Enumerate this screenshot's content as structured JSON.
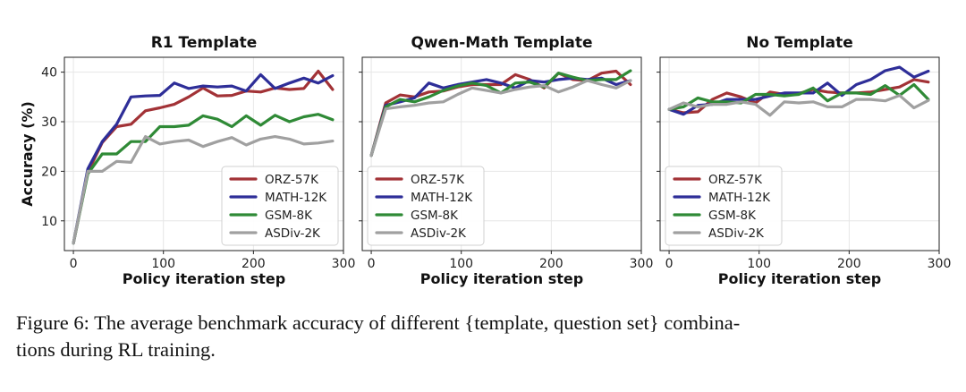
{
  "caption": {
    "line1": "Figure 6: The average benchmark accuracy of different {template, question set} combina-",
    "line2": "tions during RL training."
  },
  "colors": {
    "ORZ-57K": "#a23236",
    "MATH-12K": "#2e2e98",
    "GSM-8K": "#2f8a36",
    "ASDiv-2K": "#a0a0a0"
  },
  "chart_data": [
    {
      "type": "line",
      "title": "R1 Template",
      "xlabel": "Policy iteration step",
      "ylabel": "Accuracy (%)",
      "xlim": [
        -10,
        300
      ],
      "ylim": [
        4,
        43
      ],
      "xticks": [
        0,
        100,
        200,
        300
      ],
      "yticks": [
        10,
        20,
        30,
        40
      ],
      "grid": true,
      "legend": "lower-right",
      "series": [
        {
          "name": "ORZ-57K",
          "x": [
            0,
            16,
            32,
            48,
            64,
            80,
            96,
            112,
            128,
            144,
            160,
            176,
            192,
            208,
            224,
            240,
            256,
            272,
            288
          ],
          "y": [
            5.5,
            19.8,
            25.8,
            29.0,
            29.5,
            32.2,
            32.8,
            33.5,
            35.0,
            36.8,
            35.2,
            35.3,
            36.2,
            36.0,
            36.8,
            36.5,
            36.7,
            40.2,
            36.5
          ]
        },
        {
          "name": "MATH-12K",
          "x": [
            0,
            16,
            32,
            48,
            64,
            80,
            96,
            112,
            128,
            144,
            160,
            176,
            192,
            208,
            224,
            240,
            256,
            272,
            288
          ],
          "y": [
            5.5,
            20.5,
            26.0,
            29.5,
            35.0,
            35.2,
            35.3,
            37.8,
            36.7,
            37.2,
            37.0,
            37.2,
            36.2,
            39.5,
            36.7,
            37.8,
            38.8,
            37.8,
            39.3
          ]
        },
        {
          "name": "GSM-8K",
          "x": [
            0,
            16,
            32,
            48,
            64,
            80,
            96,
            112,
            128,
            144,
            160,
            176,
            192,
            208,
            224,
            240,
            256,
            272,
            288
          ],
          "y": [
            5.5,
            19.5,
            23.5,
            23.5,
            26.0,
            26.0,
            29.0,
            29.0,
            29.3,
            31.2,
            30.5,
            29.0,
            31.2,
            29.3,
            31.3,
            30.0,
            31.0,
            31.5,
            30.4
          ]
        },
        {
          "name": "ASDiv-2K",
          "x": [
            0,
            16,
            32,
            48,
            64,
            80,
            96,
            112,
            128,
            144,
            160,
            176,
            192,
            208,
            224,
            240,
            256,
            272,
            288
          ],
          "y": [
            5.5,
            20.0,
            20.0,
            22.0,
            21.8,
            27.0,
            25.5,
            26.0,
            26.3,
            25.0,
            26.0,
            26.8,
            25.3,
            26.5,
            27.0,
            26.5,
            25.5,
            25.7,
            26.1
          ]
        }
      ]
    },
    {
      "type": "line",
      "title": "Qwen-Math Template",
      "xlabel": "Policy iteration step",
      "ylabel": "",
      "xlim": [
        -10,
        300
      ],
      "ylim": [
        4,
        43
      ],
      "xticks": [
        0,
        100,
        200,
        300
      ],
      "yticks": [],
      "grid": true,
      "legend": "lower-left",
      "series": [
        {
          "name": "ORZ-57K",
          "x": [
            0,
            16,
            32,
            48,
            64,
            80,
            96,
            112,
            128,
            144,
            160,
            176,
            192,
            208,
            224,
            240,
            256,
            272,
            288
          ],
          "y": [
            23.2,
            33.8,
            35.4,
            35.0,
            36.0,
            36.2,
            37.0,
            37.5,
            37.5,
            37.5,
            39.5,
            38.5,
            36.8,
            39.8,
            38.5,
            38.3,
            39.8,
            40.2,
            37.5
          ]
        },
        {
          "name": "MATH-12K",
          "x": [
            0,
            16,
            32,
            48,
            64,
            80,
            96,
            112,
            128,
            144,
            160,
            176,
            192,
            208,
            224,
            240,
            256,
            272,
            288
          ],
          "y": [
            23.2,
            33.3,
            34.0,
            34.8,
            37.8,
            36.8,
            37.5,
            38.0,
            38.5,
            37.8,
            36.8,
            38.3,
            38.0,
            38.5,
            38.8,
            38.5,
            38.8,
            37.5,
            38.3
          ]
        },
        {
          "name": "GSM-8K",
          "x": [
            0,
            16,
            32,
            48,
            64,
            80,
            96,
            112,
            128,
            144,
            160,
            176,
            192,
            208,
            224,
            240,
            256,
            272,
            288
          ],
          "y": [
            23.2,
            33.0,
            34.5,
            34.0,
            35.0,
            36.3,
            37.2,
            37.8,
            37.3,
            35.8,
            37.8,
            38.0,
            37.0,
            39.8,
            39.0,
            38.3,
            38.5,
            38.5,
            40.3
          ]
        },
        {
          "name": "ASDiv-2K",
          "x": [
            0,
            16,
            32,
            48,
            64,
            80,
            96,
            112,
            128,
            144,
            160,
            176,
            192,
            208,
            224,
            240,
            256,
            272,
            288
          ],
          "y": [
            23.2,
            32.6,
            33.0,
            33.3,
            33.8,
            34.0,
            35.5,
            36.8,
            36.3,
            35.8,
            36.5,
            37.0,
            37.3,
            36.0,
            37.0,
            38.3,
            37.5,
            36.8,
            38.3
          ]
        }
      ]
    },
    {
      "type": "line",
      "title": "No Template",
      "xlabel": "Policy iteration step",
      "ylabel": "",
      "xlim": [
        -10,
        300
      ],
      "ylim": [
        4,
        43
      ],
      "xticks": [
        0,
        100,
        200,
        300
      ],
      "yticks": [],
      "grid": true,
      "legend": "lower-left",
      "series": [
        {
          "name": "ORZ-57K",
          "x": [
            0,
            16,
            32,
            48,
            64,
            80,
            96,
            112,
            128,
            144,
            160,
            176,
            192,
            208,
            224,
            240,
            256,
            272,
            288
          ],
          "y": [
            32.5,
            31.8,
            32.0,
            34.5,
            35.8,
            35.0,
            33.8,
            36.0,
            35.5,
            35.7,
            36.5,
            36.0,
            35.8,
            35.8,
            36.0,
            36.5,
            37.0,
            38.5,
            38.0
          ]
        },
        {
          "name": "MATH-12K",
          "x": [
            0,
            16,
            32,
            48,
            64,
            80,
            96,
            112,
            128,
            144,
            160,
            176,
            192,
            208,
            224,
            240,
            256,
            272,
            288
          ],
          "y": [
            32.5,
            31.5,
            33.3,
            33.5,
            34.5,
            34.5,
            34.5,
            35.2,
            35.8,
            35.8,
            35.8,
            37.8,
            35.3,
            37.5,
            38.5,
            40.3,
            41.0,
            39.0,
            40.2
          ]
        },
        {
          "name": "GSM-8K",
          "x": [
            0,
            16,
            32,
            48,
            64,
            80,
            96,
            112,
            128,
            144,
            160,
            176,
            192,
            208,
            224,
            240,
            256,
            272,
            288
          ],
          "y": [
            32.5,
            33.0,
            34.8,
            34.0,
            34.0,
            33.8,
            35.5,
            35.5,
            35.2,
            35.5,
            36.8,
            34.2,
            35.8,
            35.8,
            35.5,
            37.3,
            35.3,
            37.5,
            34.5
          ]
        },
        {
          "name": "ASDiv-2K",
          "x": [
            0,
            16,
            32,
            48,
            64,
            80,
            96,
            112,
            128,
            144,
            160,
            176,
            192,
            208,
            224,
            240,
            256,
            272,
            288
          ],
          "y": [
            32.5,
            33.8,
            33.0,
            33.5,
            33.5,
            34.0,
            33.5,
            31.3,
            34.0,
            33.8,
            34.0,
            33.0,
            33.0,
            34.5,
            34.5,
            34.2,
            35.3,
            32.8,
            34.3
          ]
        }
      ]
    }
  ]
}
